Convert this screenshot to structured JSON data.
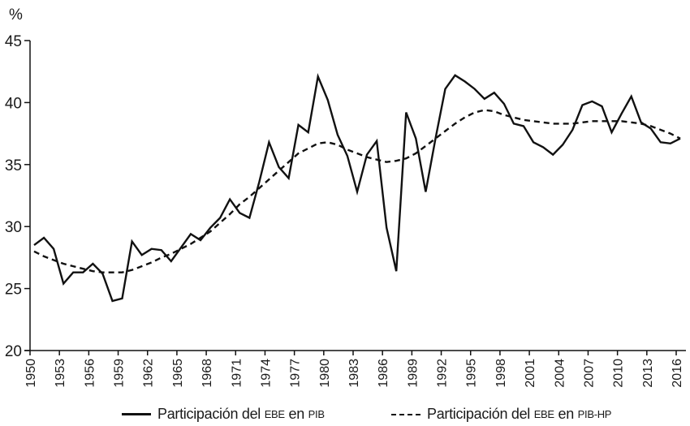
{
  "chart_data": {
    "type": "line",
    "title": "",
    "xlabel": "",
    "ylabel": "%",
    "ylim": [
      20,
      45
    ],
    "yticks": [
      20,
      25,
      30,
      35,
      40,
      45
    ],
    "xlim": [
      1950,
      2016
    ],
    "xticks": [
      1950,
      1953,
      1956,
      1959,
      1962,
      1965,
      1968,
      1971,
      1974,
      1977,
      1980,
      1983,
      1986,
      1989,
      1992,
      1995,
      1998,
      2001,
      2004,
      2007,
      2010,
      2013,
      2016
    ],
    "grid": false,
    "legend_position": "bottom",
    "x": [
      1950,
      1951,
      1952,
      1953,
      1954,
      1955,
      1956,
      1957,
      1958,
      1959,
      1960,
      1961,
      1962,
      1963,
      1964,
      1965,
      1966,
      1967,
      1968,
      1969,
      1970,
      1971,
      1972,
      1973,
      1974,
      1975,
      1976,
      1977,
      1978,
      1979,
      1980,
      1981,
      1982,
      1983,
      1984,
      1985,
      1986,
      1987,
      1988,
      1989,
      1990,
      1991,
      1992,
      1993,
      1994,
      1995,
      1996,
      1997,
      1998,
      1999,
      2000,
      2001,
      2002,
      2003,
      2004,
      2005,
      2006,
      2007,
      2008,
      2009,
      2010,
      2011,
      2012,
      2013,
      2014,
      2015,
      2016
    ],
    "series": [
      {
        "name": "Participación del EBE en PIB",
        "style": "solid",
        "values": [
          28.5,
          29.1,
          28.2,
          25.4,
          26.3,
          26.3,
          27.0,
          26.2,
          24.0,
          24.2,
          28.8,
          27.7,
          28.2,
          28.1,
          27.2,
          28.3,
          29.4,
          28.9,
          29.9,
          30.7,
          32.2,
          31.1,
          30.7,
          33.6,
          36.8,
          34.8,
          33.9,
          38.2,
          37.6,
          42.1,
          40.2,
          37.4,
          35.7,
          32.8,
          35.8,
          36.9,
          29.9,
          26.4,
          39.2,
          37.1,
          32.8,
          37.1,
          41.1,
          42.2,
          41.7,
          41.1,
          40.3,
          40.8,
          39.9,
          38.3,
          38.1,
          36.8,
          36.4,
          35.8,
          36.6,
          37.8,
          39.8,
          40.1,
          39.7,
          37.6,
          39.1,
          40.5,
          38.4,
          37.9,
          36.8,
          36.7,
          37.1
        ]
      },
      {
        "name": "Participación del EBE en PIB-HP",
        "style": "dashed",
        "values": [
          28.0,
          27.6,
          27.3,
          27.0,
          26.8,
          26.6,
          26.4,
          26.3,
          26.3,
          26.3,
          26.5,
          26.8,
          27.1,
          27.5,
          27.8,
          28.2,
          28.6,
          29.1,
          29.6,
          30.3,
          31.0,
          31.8,
          32.4,
          33.1,
          33.8,
          34.5,
          35.2,
          35.9,
          36.3,
          36.7,
          36.8,
          36.6,
          36.2,
          35.9,
          35.6,
          35.4,
          35.2,
          35.3,
          35.5,
          35.9,
          36.5,
          37.1,
          37.7,
          38.3,
          38.8,
          39.2,
          39.4,
          39.3,
          39.0,
          38.8,
          38.6,
          38.5,
          38.4,
          38.3,
          38.3,
          38.3,
          38.4,
          38.5,
          38.5,
          38.5,
          38.5,
          38.4,
          38.3,
          38.1,
          37.8,
          37.5,
          37.1
        ]
      }
    ]
  },
  "axis": {
    "y_unit": "%",
    "y_tick_labels": [
      "45",
      "40",
      "35",
      "30",
      "25",
      "20"
    ],
    "x_tick_labels": [
      "1950",
      "1953",
      "1956",
      "1959",
      "1962",
      "1965",
      "1968",
      "1971",
      "1974",
      "1977",
      "1980",
      "1983",
      "1986",
      "1989",
      "1992",
      "1995",
      "1998",
      "2001",
      "2004",
      "2007",
      "2010",
      "2013",
      "2016"
    ]
  },
  "legend": {
    "items": [
      {
        "prefix": "Participación del ",
        "abbr1": "EBE",
        "mid": " en ",
        "abbr2": "PIB",
        "style": "solid"
      },
      {
        "prefix": "Participación del ",
        "abbr1": "EBE",
        "mid": " en ",
        "abbr2": "PIB-HP",
        "style": "dashed"
      }
    ]
  },
  "colors": {
    "line": "#111111",
    "axis": "#111111",
    "background": "#ffffff"
  }
}
